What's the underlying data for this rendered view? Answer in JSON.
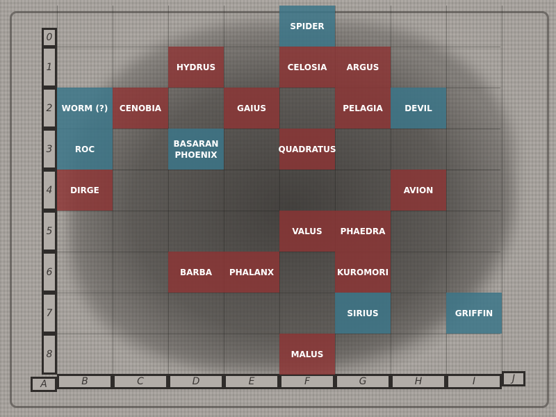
{
  "map": {
    "colors": {
      "boss": "#8c3434",
      "unused": "#3c7688"
    },
    "row_labels": [
      "0",
      "1",
      "2",
      "3",
      "4",
      "5",
      "6",
      "7",
      "8"
    ],
    "column_labels": [
      "A",
      "B",
      "C",
      "D",
      "E",
      "F",
      "G",
      "H",
      "I",
      "J"
    ],
    "cells": [
      {
        "label": "SPIDER",
        "col": "F",
        "row": 0,
        "color": "blue"
      },
      {
        "label": "HYDRUS",
        "col": "D",
        "row": 1,
        "color": "red"
      },
      {
        "label": "CELOSIA",
        "col": "F",
        "row": 1,
        "color": "red"
      },
      {
        "label": "ARGUS",
        "col": "G",
        "row": 1,
        "color": "red"
      },
      {
        "label": "WORM (?)",
        "col": "B",
        "row": 2,
        "color": "blue"
      },
      {
        "label": "CENOBIA",
        "col": "C",
        "row": 2,
        "color": "red"
      },
      {
        "label": "GAIUS",
        "col": "E",
        "row": 2,
        "color": "red"
      },
      {
        "label": "PELAGIA",
        "col": "G",
        "row": 2,
        "color": "red"
      },
      {
        "label": "DEVIL",
        "col": "H",
        "row": 2,
        "color": "blue"
      },
      {
        "label": "ROC",
        "col": "B",
        "row": 3,
        "color": "blue"
      },
      {
        "label": "BASARAN PHOENIX",
        "col": "D",
        "row": 3,
        "color": "blue"
      },
      {
        "label": "QUADRATUS",
        "col": "F",
        "row": 3,
        "color": "red"
      },
      {
        "label": "DIRGE",
        "col": "B",
        "row": 4,
        "color": "red"
      },
      {
        "label": "AVION",
        "col": "H",
        "row": 4,
        "color": "red"
      },
      {
        "label": "VALUS",
        "col": "F",
        "row": 5,
        "color": "red"
      },
      {
        "label": "PHAEDRA",
        "col": "G",
        "row": 5,
        "color": "red"
      },
      {
        "label": "BARBA",
        "col": "D",
        "row": 6,
        "color": "red"
      },
      {
        "label": "PHALANX",
        "col": "E",
        "row": 6,
        "color": "red"
      },
      {
        "label": "KUROMORI",
        "col": "G",
        "row": 6,
        "color": "red"
      },
      {
        "label": "SIRIUS",
        "col": "G",
        "row": 7,
        "color": "blue"
      },
      {
        "label": "GRIFFIN",
        "col": "I",
        "row": 7,
        "color": "blue"
      },
      {
        "label": "MALUS",
        "col": "F",
        "row": 8,
        "color": "red"
      }
    ]
  }
}
